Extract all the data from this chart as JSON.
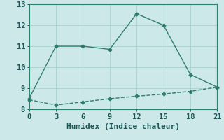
{
  "xlabel": "Humidex (Indice chaleur)",
  "ylabel": "",
  "background_color": "#cce8e8",
  "line_color": "#2e7d6e",
  "grid_color": "#aad4d4",
  "line1_x": [
    0,
    3,
    6,
    9,
    12,
    15,
    18,
    21
  ],
  "line1_y": [
    8.5,
    11.0,
    11.0,
    10.85,
    12.55,
    12.0,
    9.65,
    9.05
  ],
  "line2_x": [
    0,
    3,
    6,
    9,
    12,
    15,
    18,
    21
  ],
  "line2_y": [
    8.45,
    8.2,
    8.35,
    8.5,
    8.62,
    8.72,
    8.85,
    9.05
  ],
  "xlim": [
    0,
    21
  ],
  "ylim": [
    8,
    13
  ],
  "xticks": [
    0,
    3,
    6,
    9,
    12,
    15,
    18,
    21
  ],
  "yticks": [
    8,
    9,
    10,
    11,
    12,
    13
  ],
  "fontsize_label": 8,
  "fontsize_tick": 7.5,
  "marker": "D",
  "markersize": 2.5,
  "linewidth": 1.0
}
